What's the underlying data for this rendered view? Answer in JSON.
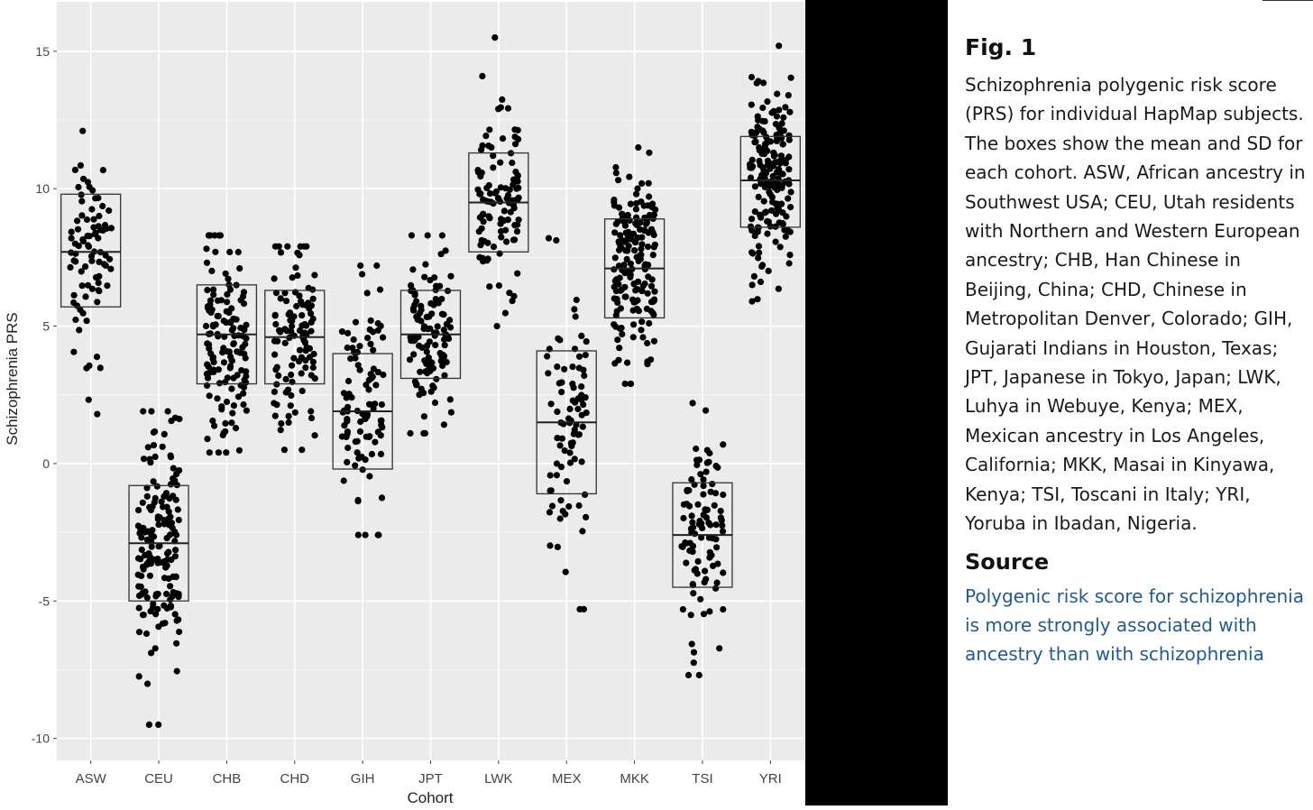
{
  "chart_data": {
    "type": "scatter",
    "subtype": "jittered strip plot with mean ± SD boxes",
    "xlabel": "Cohort",
    "ylabel": "Schizophrenia PRS",
    "ylim": [
      -10.8,
      16.8
    ],
    "yticks": [
      -10,
      -5,
      0,
      5,
      10,
      15
    ],
    "ytick_labels": [
      "-10",
      "-5",
      "0",
      "5",
      "10",
      "15"
    ],
    "grid": true,
    "legend": "none",
    "categories": [
      "ASW",
      "CEU",
      "CHB",
      "CHD",
      "GIH",
      "JPT",
      "LWK",
      "MEX",
      "MKK",
      "TSI",
      "YRI"
    ],
    "boxes": [
      {
        "cohort": "ASW",
        "mean": 7.7,
        "lower": 5.7,
        "upper": 9.8,
        "n": 85,
        "min": 1.8,
        "max": 12.1
      },
      {
        "cohort": "CEU",
        "mean": -2.9,
        "lower": -5.0,
        "upper": -0.8,
        "n": 160,
        "min": -9.5,
        "max": 1.9
      },
      {
        "cohort": "CHB",
        "mean": 4.7,
        "lower": 2.9,
        "upper": 6.5,
        "n": 135,
        "min": 0.4,
        "max": 8.3
      },
      {
        "cohort": "CHD",
        "mean": 4.6,
        "lower": 2.9,
        "upper": 6.3,
        "n": 110,
        "min": 0.5,
        "max": 7.9
      },
      {
        "cohort": "GIH",
        "mean": 1.9,
        "lower": -0.2,
        "upper": 4.0,
        "n": 100,
        "min": -2.6,
        "max": 7.2
      },
      {
        "cohort": "JPT",
        "mean": 4.7,
        "lower": 3.1,
        "upper": 6.3,
        "n": 115,
        "min": 1.1,
        "max": 8.3
      },
      {
        "cohort": "LWK",
        "mean": 9.5,
        "lower": 7.7,
        "upper": 11.3,
        "n": 110,
        "min": 5.0,
        "max": 15.5
      },
      {
        "cohort": "MEX",
        "mean": 1.5,
        "lower": -1.1,
        "upper": 4.1,
        "n": 85,
        "min": -5.3,
        "max": 8.2
      },
      {
        "cohort": "MKK",
        "mean": 7.1,
        "lower": 5.3,
        "upper": 8.9,
        "n": 180,
        "min": 2.9,
        "max": 11.5
      },
      {
        "cohort": "TSI",
        "mean": -2.6,
        "lower": -4.5,
        "upper": -0.7,
        "n": 100,
        "min": -7.7,
        "max": 2.2
      },
      {
        "cohort": "YRI",
        "mean": 10.3,
        "lower": 8.6,
        "upper": 11.9,
        "n": 180,
        "min": 5.9,
        "max": 15.2
      }
    ]
  },
  "caption": {
    "title": "Fig. 1",
    "text": "Schizophrenia polygenic risk score (PRS) for individual HapMap subjects. The boxes show the mean and SD for each cohort. ASW, African ancestry in Southwest USA; CEU, Utah residents with Northern and Western European ancestry; CHB, Han Chinese in Beijing, China; CHD, Chinese in Metropolitan Denver, Colorado; GIH, Gujarati Indians in Houston, Texas; JPT, Japanese in Tokyo, Japan; LWK, Luhya in Webuye, Kenya; MEX, Mexican ancestry in Los Angeles, California; MKK, Masai in Kinyawa, Kenya; TSI, Toscani in Italy; YRI, Yoruba in Ibadan, Nigeria.",
    "source_heading": "Source",
    "source_link": "Polygenic risk score for schizophrenia is more strongly associated with ancestry than with schizophrenia"
  },
  "colors": {
    "panel_background": "#ebebeb",
    "gridline": "#ffffff",
    "point": "#000000",
    "box_stroke": "#333333",
    "link": "#1f5a96",
    "band": "#000000"
  }
}
